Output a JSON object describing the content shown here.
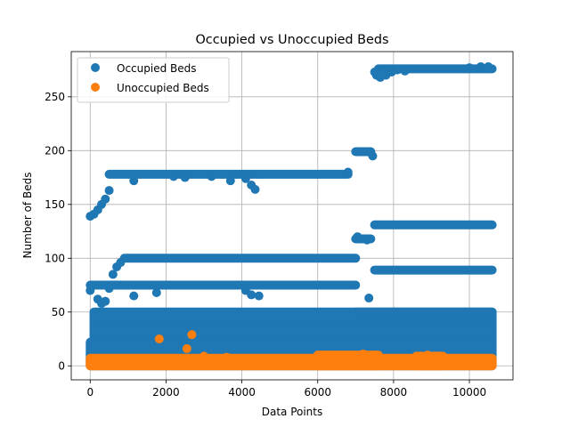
{
  "chart_data": {
    "type": "scatter",
    "title": "Occupied vs Unoccupied Beds",
    "xlabel": "Data Points",
    "ylabel": "Number of Beds",
    "xlim": [
      -500,
      11150
    ],
    "ylim": [
      -13,
      292
    ],
    "x_ticks": [
      0,
      2000,
      4000,
      6000,
      8000,
      10000
    ],
    "y_ticks": [
      0,
      50,
      100,
      150,
      200,
      250
    ],
    "grid": true,
    "legend": "top-left",
    "series": [
      {
        "name": "Occupied Beds",
        "color": "#1f77b4",
        "bands": [
          {
            "x0": 0,
            "x1": 10600,
            "y0": 0,
            "y1": 22
          },
          {
            "x0": 100,
            "x1": 10600,
            "y0": 23,
            "y1": 30
          },
          {
            "x0": 100,
            "x1": 10600,
            "y0": 31,
            "y1": 40
          },
          {
            "x0": 100,
            "x1": 10600,
            "y0": 41,
            "y1": 50
          }
        ],
        "runs": [
          {
            "x0": 0,
            "x1": 7000,
            "y": 75
          },
          {
            "x0": 900,
            "x1": 7000,
            "y": 100
          },
          {
            "x0": 500,
            "x1": 6800,
            "y": 178
          },
          {
            "x0": 7000,
            "x1": 7400,
            "y": 199
          },
          {
            "x0": 7000,
            "x1": 7400,
            "y": 118
          },
          {
            "x0": 7500,
            "x1": 10600,
            "y": 131
          },
          {
            "x0": 7500,
            "x1": 10600,
            "y": 89
          },
          {
            "x0": 7600,
            "x1": 10600,
            "y": 276
          },
          {
            "x0": 7000,
            "x1": 10600,
            "y": 50
          }
        ],
        "points": [
          [
            0,
            139
          ],
          [
            100,
            141
          ],
          [
            200,
            145
          ],
          [
            300,
            150
          ],
          [
            400,
            155
          ],
          [
            500,
            163
          ],
          [
            0,
            70
          ],
          [
            200,
            62
          ],
          [
            300,
            58
          ],
          [
            400,
            60
          ],
          [
            500,
            72
          ],
          [
            600,
            85
          ],
          [
            700,
            92
          ],
          [
            800,
            96
          ],
          [
            1150,
            172
          ],
          [
            1150,
            65
          ],
          [
            1750,
            68
          ],
          [
            2200,
            176
          ],
          [
            2500,
            175
          ],
          [
            3200,
            176
          ],
          [
            3700,
            172
          ],
          [
            3850,
            178
          ],
          [
            4100,
            174
          ],
          [
            4250,
            168
          ],
          [
            4350,
            164
          ],
          [
            4450,
            178
          ],
          [
            4100,
            70
          ],
          [
            4250,
            66
          ],
          [
            4450,
            65
          ],
          [
            6800,
            180
          ],
          [
            7050,
            120
          ],
          [
            7300,
            117
          ],
          [
            7400,
            198
          ],
          [
            7450,
            195
          ],
          [
            7350,
            63
          ],
          [
            7500,
            273
          ],
          [
            7550,
            270
          ],
          [
            7650,
            268
          ],
          [
            7800,
            270
          ],
          [
            7950,
            273
          ],
          [
            8100,
            275
          ],
          [
            8300,
            274
          ],
          [
            10000,
            277
          ],
          [
            10300,
            278
          ],
          [
            10500,
            278
          ]
        ]
      },
      {
        "name": "Unoccupied Beds",
        "color": "#ff7f0e",
        "bands": [
          {
            "x0": 0,
            "x1": 10600,
            "y0": 0,
            "y1": 7
          },
          {
            "x0": 6000,
            "x1": 7600,
            "y0": 0,
            "y1": 10
          },
          {
            "x0": 8600,
            "x1": 9300,
            "y0": 0,
            "y1": 9
          }
        ],
        "runs": [],
        "points": [
          [
            1820,
            25
          ],
          [
            2550,
            16
          ],
          [
            2680,
            29
          ],
          [
            3000,
            9
          ],
          [
            3600,
            8
          ],
          [
            7200,
            11
          ],
          [
            8900,
            10
          ]
        ]
      }
    ]
  }
}
